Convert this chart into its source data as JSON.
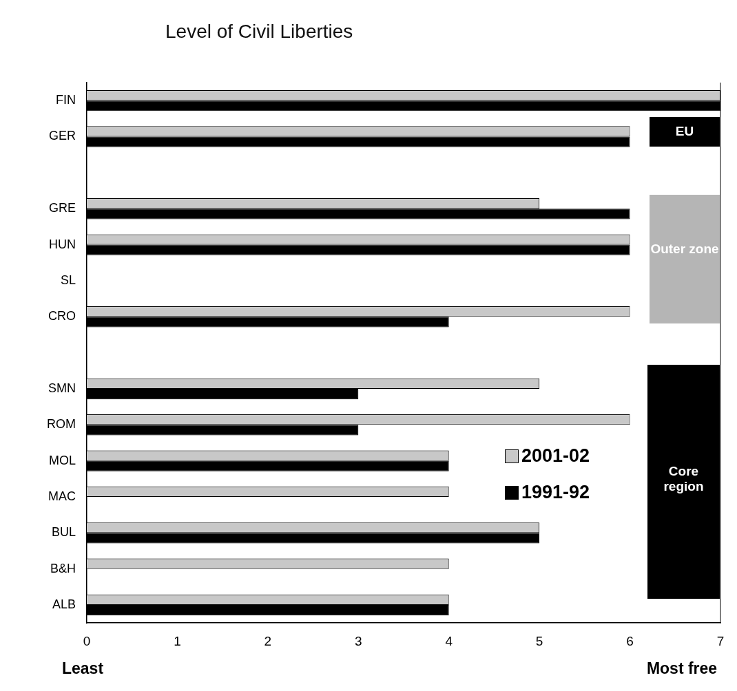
{
  "chart_data": {
    "type": "bar",
    "orientation": "horizontal",
    "title": "Level of Civil Liberties",
    "categories": [
      "FIN",
      "GER",
      null,
      "GRE",
      "HUN",
      "SL",
      "CRO",
      null,
      "SMN",
      "ROM",
      "MOL",
      "MAC",
      "BUL",
      "B&H",
      "ALB"
    ],
    "series": [
      {
        "name": "2001-02",
        "color": "#c8c8c8",
        "values": [
          7,
          6,
          null,
          5,
          6,
          null,
          6,
          null,
          5,
          6,
          4,
          4,
          5,
          4,
          4
        ]
      },
      {
        "name": "1991-92",
        "color": "#000000",
        "values": [
          7,
          6,
          null,
          6,
          6,
          null,
          4,
          null,
          3,
          3,
          4,
          null,
          5,
          null,
          4
        ]
      }
    ],
    "xlim": [
      0,
      7
    ],
    "xticks": [
      0,
      1,
      2,
      3,
      4,
      5,
      6,
      7
    ],
    "grid": false,
    "legend": "right",
    "annotations": [
      "EU",
      "Outer zone",
      "Core region",
      "Least",
      "Most free"
    ]
  }
}
